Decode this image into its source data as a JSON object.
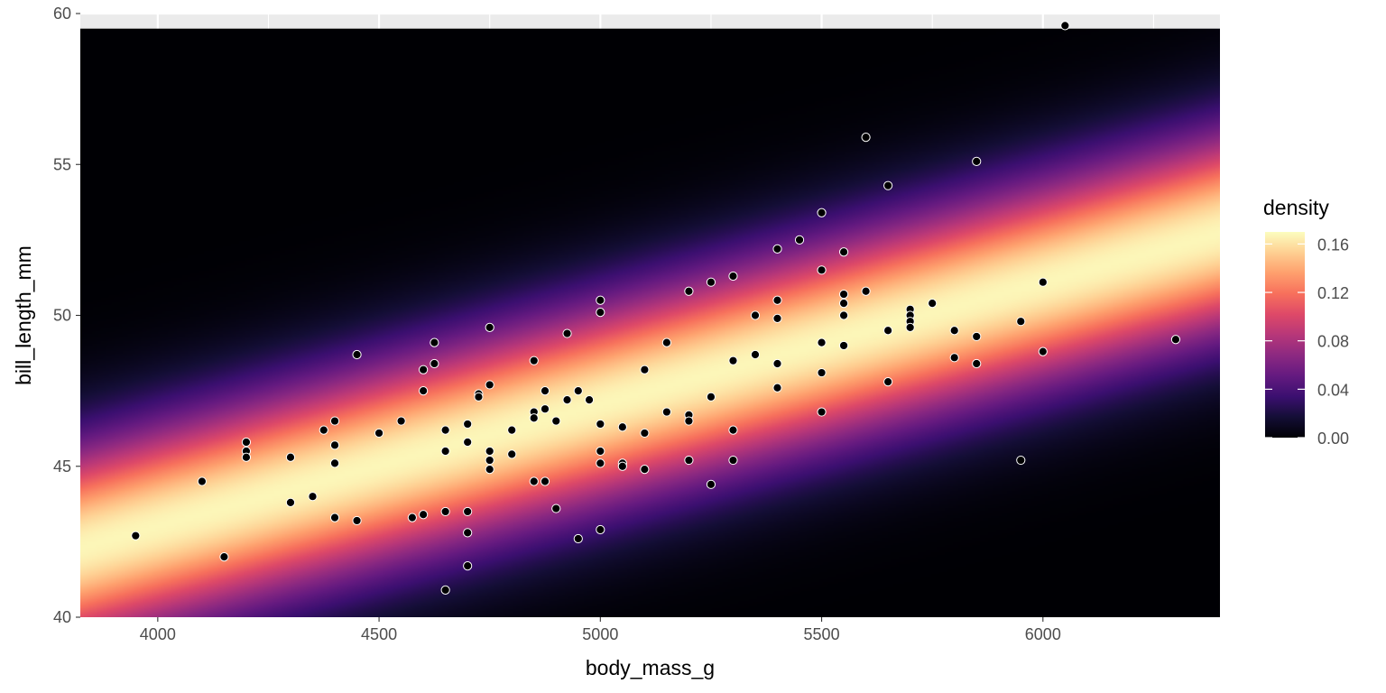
{
  "chart_data": {
    "type": "scatter",
    "title": "",
    "xlabel": "body_mass_g",
    "ylabel": "bill_length_mm",
    "xlim": [
      3825,
      6400
    ],
    "ylim": [
      40,
      60
    ],
    "x_ticks": [
      4000,
      4500,
      5000,
      5500,
      6000
    ],
    "y_ticks": [
      40,
      45,
      50,
      55,
      60
    ],
    "x_tick_labels": [
      "4000",
      "4500",
      "5000",
      "5500",
      "6000"
    ],
    "y_tick_labels": [
      "40",
      "45",
      "50",
      "55",
      "60"
    ],
    "grid": true,
    "background": {
      "kind": "density_raster",
      "colormap": "magma",
      "ridge": {
        "x0": 3825,
        "y0": 42.3,
        "x1": 6400,
        "y1": 52.7
      },
      "sigma_y": 2.35,
      "max_density": 0.17
    },
    "legend": {
      "title": "density",
      "placement": "right",
      "ticks": [
        "0.00",
        "0.04",
        "0.08",
        "0.12",
        "0.16"
      ],
      "tick_values": [
        0,
        0.04,
        0.08,
        0.12,
        0.16
      ],
      "range": [
        0,
        0.17
      ]
    },
    "colors": {
      "panel_bg": "#EBEBEB",
      "grid": "#FFFFFF",
      "point_fill": "#000000",
      "point_stroke": "#FFFFFF",
      "axis_text": "#4D4D4D",
      "axis_title": "#000000"
    },
    "points": [
      {
        "x": 3950,
        "y": 42.7
      },
      {
        "x": 4100,
        "y": 44.5
      },
      {
        "x": 4150,
        "y": 42.0
      },
      {
        "x": 4200,
        "y": 45.8
      },
      {
        "x": 4200,
        "y": 45.5
      },
      {
        "x": 4200,
        "y": 45.3
      },
      {
        "x": 4300,
        "y": 45.3
      },
      {
        "x": 4300,
        "y": 43.8
      },
      {
        "x": 4350,
        "y": 44.0
      },
      {
        "x": 4375,
        "y": 46.2
      },
      {
        "x": 4400,
        "y": 46.5
      },
      {
        "x": 4400,
        "y": 45.7
      },
      {
        "x": 4400,
        "y": 45.1
      },
      {
        "x": 4400,
        "y": 43.3
      },
      {
        "x": 4450,
        "y": 48.7
      },
      {
        "x": 4450,
        "y": 43.2
      },
      {
        "x": 4500,
        "y": 46.1
      },
      {
        "x": 4550,
        "y": 46.5
      },
      {
        "x": 4575,
        "y": 43.3
      },
      {
        "x": 4600,
        "y": 48.2
      },
      {
        "x": 4600,
        "y": 47.5
      },
      {
        "x": 4600,
        "y": 43.4
      },
      {
        "x": 4625,
        "y": 49.1
      },
      {
        "x": 4625,
        "y": 48.4
      },
      {
        "x": 4650,
        "y": 46.2
      },
      {
        "x": 4650,
        "y": 45.5
      },
      {
        "x": 4650,
        "y": 43.5
      },
      {
        "x": 4650,
        "y": 40.9
      },
      {
        "x": 4700,
        "y": 46.4
      },
      {
        "x": 4700,
        "y": 45.8
      },
      {
        "x": 4700,
        "y": 43.5
      },
      {
        "x": 4700,
        "y": 42.8
      },
      {
        "x": 4700,
        "y": 41.7
      },
      {
        "x": 4725,
        "y": 47.4
      },
      {
        "x": 4725,
        "y": 47.3
      },
      {
        "x": 4750,
        "y": 49.6
      },
      {
        "x": 4750,
        "y": 47.7
      },
      {
        "x": 4750,
        "y": 45.5
      },
      {
        "x": 4750,
        "y": 45.2
      },
      {
        "x": 4750,
        "y": 44.9
      },
      {
        "x": 4800,
        "y": 46.2
      },
      {
        "x": 4800,
        "y": 45.4
      },
      {
        "x": 4850,
        "y": 48.5
      },
      {
        "x": 4850,
        "y": 46.8
      },
      {
        "x": 4850,
        "y": 46.6
      },
      {
        "x": 4850,
        "y": 44.5
      },
      {
        "x": 4875,
        "y": 47.5
      },
      {
        "x": 4875,
        "y": 46.9
      },
      {
        "x": 4875,
        "y": 44.5
      },
      {
        "x": 4900,
        "y": 46.5
      },
      {
        "x": 4900,
        "y": 43.6
      },
      {
        "x": 4925,
        "y": 49.4
      },
      {
        "x": 4925,
        "y": 47.2
      },
      {
        "x": 4950,
        "y": 47.5
      },
      {
        "x": 4950,
        "y": 42.6
      },
      {
        "x": 4975,
        "y": 47.2
      },
      {
        "x": 5000,
        "y": 50.5
      },
      {
        "x": 5000,
        "y": 50.1
      },
      {
        "x": 5000,
        "y": 46.4
      },
      {
        "x": 5000,
        "y": 45.5
      },
      {
        "x": 5000,
        "y": 45.1
      },
      {
        "x": 5000,
        "y": 42.9
      },
      {
        "x": 5050,
        "y": 46.3
      },
      {
        "x": 5050,
        "y": 45.1
      },
      {
        "x": 5050,
        "y": 45.0
      },
      {
        "x": 5100,
        "y": 48.2
      },
      {
        "x": 5100,
        "y": 46.1
      },
      {
        "x": 5100,
        "y": 44.9
      },
      {
        "x": 5150,
        "y": 49.1
      },
      {
        "x": 5150,
        "y": 46.8
      },
      {
        "x": 5200,
        "y": 50.8
      },
      {
        "x": 5200,
        "y": 46.7
      },
      {
        "x": 5200,
        "y": 46.5
      },
      {
        "x": 5200,
        "y": 45.2
      },
      {
        "x": 5250,
        "y": 51.1
      },
      {
        "x": 5250,
        "y": 47.3
      },
      {
        "x": 5250,
        "y": 44.4
      },
      {
        "x": 5300,
        "y": 51.3
      },
      {
        "x": 5300,
        "y": 48.5
      },
      {
        "x": 5300,
        "y": 46.2
      },
      {
        "x": 5300,
        "y": 45.2
      },
      {
        "x": 5350,
        "y": 50.0
      },
      {
        "x": 5350,
        "y": 48.7
      },
      {
        "x": 5400,
        "y": 52.2
      },
      {
        "x": 5400,
        "y": 50.5
      },
      {
        "x": 5400,
        "y": 49.9
      },
      {
        "x": 5400,
        "y": 48.4
      },
      {
        "x": 5400,
        "y": 47.6
      },
      {
        "x": 5450,
        "y": 52.5
      },
      {
        "x": 5500,
        "y": 53.4
      },
      {
        "x": 5500,
        "y": 51.5
      },
      {
        "x": 5500,
        "y": 49.1
      },
      {
        "x": 5500,
        "y": 48.1
      },
      {
        "x": 5500,
        "y": 46.8
      },
      {
        "x": 5550,
        "y": 52.1
      },
      {
        "x": 5550,
        "y": 50.7
      },
      {
        "x": 5550,
        "y": 50.4
      },
      {
        "x": 5550,
        "y": 50.0
      },
      {
        "x": 5550,
        "y": 49.0
      },
      {
        "x": 5600,
        "y": 55.9
      },
      {
        "x": 5600,
        "y": 50.8
      },
      {
        "x": 5650,
        "y": 54.3
      },
      {
        "x": 5650,
        "y": 49.5
      },
      {
        "x": 5650,
        "y": 47.8
      },
      {
        "x": 5700,
        "y": 50.2
      },
      {
        "x": 5700,
        "y": 50.0
      },
      {
        "x": 5700,
        "y": 49.8
      },
      {
        "x": 5700,
        "y": 49.6
      },
      {
        "x": 5750,
        "y": 50.4
      },
      {
        "x": 5800,
        "y": 49.5
      },
      {
        "x": 5800,
        "y": 48.6
      },
      {
        "x": 5850,
        "y": 55.1
      },
      {
        "x": 5850,
        "y": 49.3
      },
      {
        "x": 5850,
        "y": 48.4
      },
      {
        "x": 5950,
        "y": 49.8
      },
      {
        "x": 5950,
        "y": 45.2
      },
      {
        "x": 6000,
        "y": 51.1
      },
      {
        "x": 6000,
        "y": 48.8
      },
      {
        "x": 6050,
        "y": 59.6
      },
      {
        "x": 6300,
        "y": 49.2
      }
    ]
  }
}
